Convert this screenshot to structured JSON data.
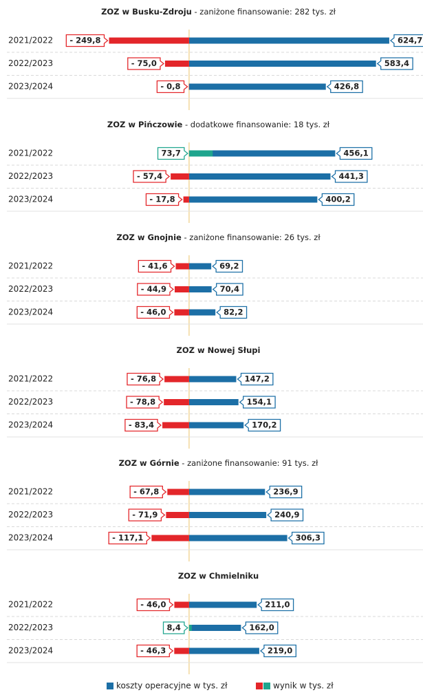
{
  "chart_data": {
    "type": "bar",
    "xlim": [
      -590,
      730
    ],
    "legend": [
      {
        "name": "koszty operacyjne w tys. zł",
        "color": "#1c6fa6"
      },
      {
        "name": "wynik w tys. zł",
        "colors": [
          "#e3262a",
          "#1fa58e"
        ]
      }
    ],
    "panels": [
      {
        "title": "ZOZ w Busku-Zdroju",
        "subtitle": " - zaniżone finansowanie: 282 tys. zł",
        "categories": [
          "2021/2022",
          "2022/2023",
          "2023/2024"
        ],
        "costs": [
          624.7,
          583.4,
          426.8
        ],
        "costs_labels": [
          "624,7",
          "583,4",
          "426,8"
        ],
        "result": [
          -249.8,
          -75.0,
          -0.8
        ],
        "result_labels": [
          "- 249,8",
          "- 75,0",
          "- 0,8"
        ]
      },
      {
        "title": "ZOZ w Pińczowie",
        "subtitle": " - dodatkowe finansowanie: 18 tys. zł",
        "categories": [
          "2021/2022",
          "2022/2023",
          "2023/2024"
        ],
        "costs": [
          456.1,
          441.3,
          400.2
        ],
        "costs_labels": [
          "456,1",
          "441,3",
          "400,2"
        ],
        "result": [
          73.7,
          -57.4,
          -17.8
        ],
        "result_labels": [
          "73,7",
          "- 57,4",
          "- 17,8"
        ]
      },
      {
        "title": "ZOZ w Gnojnie",
        "subtitle": " - zaniżone finansowanie: 26 tys. zł",
        "categories": [
          "2021/2022",
          "2022/2023",
          "2023/2024"
        ],
        "costs": [
          69.2,
          70.4,
          82.2
        ],
        "costs_labels": [
          "69,2",
          "70,4",
          "82,2"
        ],
        "result": [
          -41.6,
          -44.9,
          -46.0
        ],
        "result_labels": [
          "- 41,6",
          "- 44,9",
          "- 46,0"
        ]
      },
      {
        "title": "ZOZ w Nowej Słupi",
        "categories": [
          "2021/2022",
          "2022/2023",
          "2023/2024"
        ],
        "costs": [
          147.2,
          154.1,
          170.2
        ],
        "costs_labels": [
          "147,2",
          "154,1",
          "170,2"
        ],
        "result": [
          -76.8,
          -78.8,
          -83.4
        ],
        "result_labels": [
          "- 76,8",
          "- 78,8",
          "- 83,4"
        ]
      },
      {
        "title": "ZOZ w Górnie",
        "subtitle": " - zaniżone finansowanie: 91 tys. zł",
        "categories": [
          "2021/2022",
          "2022/2023",
          "2023/2024"
        ],
        "costs": [
          236.9,
          240.9,
          306.3
        ],
        "costs_labels": [
          "236,9",
          "240,9",
          "306,3"
        ],
        "result": [
          -67.8,
          -71.9,
          -117.1
        ],
        "result_labels": [
          "- 67,8",
          "- 71,9",
          "- 117,1"
        ]
      },
      {
        "title": "ZOZ w Chmielniku",
        "categories": [
          "2021/2022",
          "2022/2023",
          "2023/2024"
        ],
        "costs": [
          211.0,
          162.0,
          219.0
        ],
        "costs_labels": [
          "211,0",
          "162,0",
          "219,0"
        ],
        "result": [
          -46.0,
          8.4,
          -46.3
        ],
        "result_labels": [
          "- 46,0",
          "8,4",
          "- 46,3"
        ]
      }
    ]
  }
}
